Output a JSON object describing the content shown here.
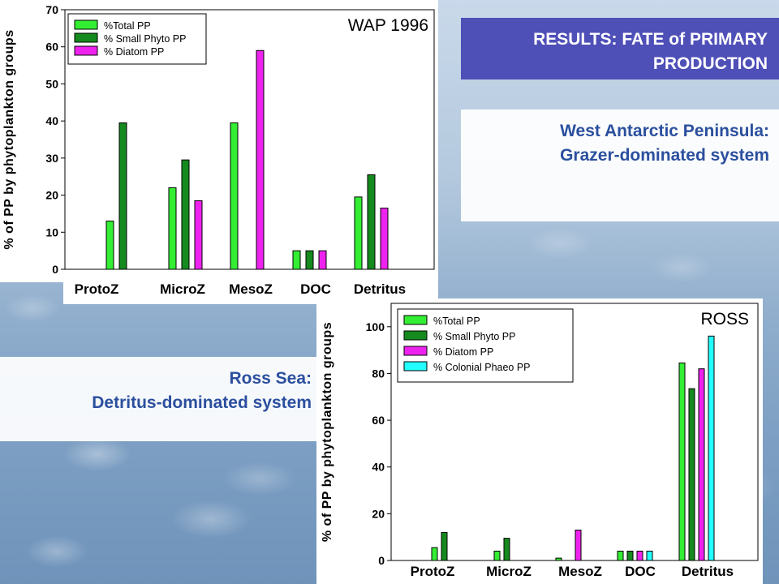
{
  "slide": {
    "title_line1": "RESULTS: FATE of PRIMARY",
    "title_line2": "PRODUCTION",
    "wap_caption_line1": "West Antarctic Peninsula:",
    "wap_caption_line2": "Grazer-dominated system",
    "ross_caption_line1": "Ross Sea:",
    "ross_caption_line2": "Detritus-dominated system"
  },
  "colors": {
    "total_pp": "#33ee33",
    "small_phyto_pp": "#158a1e",
    "diatom_pp": "#ee22ee",
    "colonial_phaeo_pp": "#22ffff"
  },
  "chart_data": [
    {
      "type": "bar",
      "title": "WAP 1996",
      "xlabel": "",
      "ylabel": "% of PP by phytoplankton groups",
      "categories": [
        "ProtoZ",
        "MicroZ",
        "MesoZ",
        "DOC",
        "Detritus"
      ],
      "ylim": [
        0,
        70
      ],
      "yticks": [
        0,
        10,
        20,
        30,
        40,
        50,
        60,
        70
      ],
      "legend_position": "top-left",
      "grid": false,
      "series": [
        {
          "name": "%Total PP",
          "color_key": "total_pp",
          "values": [
            13,
            22,
            39.5,
            5,
            19.5
          ]
        },
        {
          "name": "% Small Phyto PP",
          "color_key": "small_phyto_pp",
          "values": [
            39.5,
            29.5,
            0,
            5,
            25.5
          ]
        },
        {
          "name": "% Diatom PP",
          "color_key": "diatom_pp",
          "values": [
            0,
            18.5,
            59,
            5,
            16.5
          ]
        }
      ]
    },
    {
      "type": "bar",
      "title": "ROSS",
      "xlabel": "",
      "ylabel": "% of PP by phytoplankton groups",
      "categories": [
        "ProtoZ",
        "MicroZ",
        "MesoZ",
        "DOC",
        "Detritus"
      ],
      "ylim": [
        0,
        110
      ],
      "yticks": [
        0,
        20,
        40,
        60,
        80,
        100
      ],
      "legend_position": "top-left",
      "grid": false,
      "series": [
        {
          "name": "%Total PP",
          "color_key": "total_pp",
          "values": [
            5.5,
            4,
            1,
            4,
            84.5
          ]
        },
        {
          "name": "% Small Phyto PP",
          "color_key": "small_phyto_pp",
          "values": [
            12,
            9.5,
            0,
            4,
            73.5
          ]
        },
        {
          "name": "% Diatom PP",
          "color_key": "diatom_pp",
          "values": [
            0,
            0,
            13,
            4,
            82
          ]
        },
        {
          "name": "% Colonial Phaeo PP",
          "color_key": "colonial_phaeo_pp",
          "values": [
            0,
            0,
            0,
            4,
            96
          ]
        }
      ]
    }
  ]
}
